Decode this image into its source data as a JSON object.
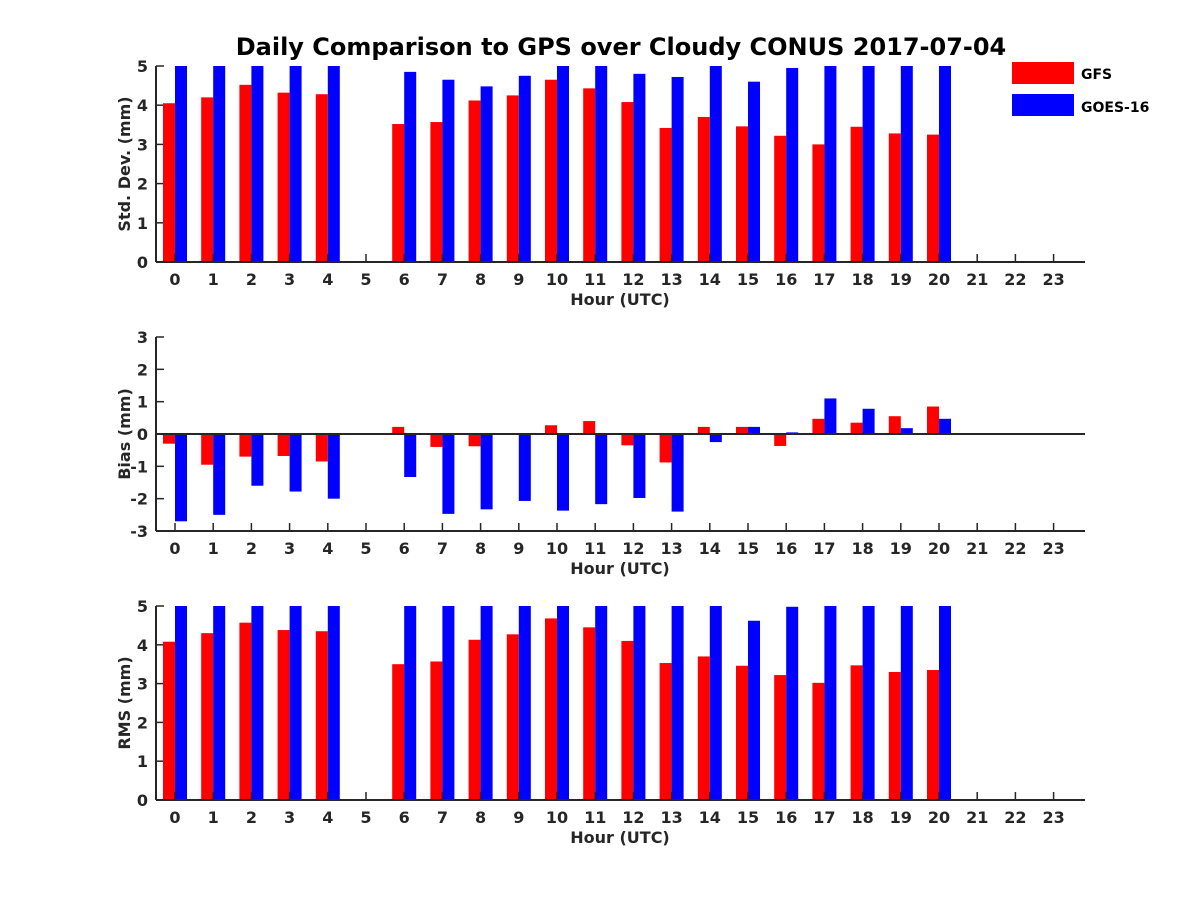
{
  "chart_data": {
    "title": "Daily Comparison to GPS over Cloudy CONUS 2017-07-04",
    "legend": {
      "position": "top-right",
      "entries": [
        {
          "name": "GFS",
          "color": "#ff0000"
        },
        {
          "name": "GOES-16",
          "color": "#0000ff"
        }
      ]
    },
    "panels": [
      {
        "type": "bar",
        "ylabel": "Std. Dev. (mm)",
        "xlabel": "Hour (UTC)",
        "ylim": [
          0,
          5
        ],
        "yticks": [
          "0",
          "1",
          "2",
          "3",
          "4",
          "5"
        ],
        "categories": [
          "0",
          "1",
          "2",
          "3",
          "4",
          "5",
          "6",
          "7",
          "8",
          "9",
          "10",
          "11",
          "12",
          "13",
          "14",
          "15",
          "16",
          "17",
          "18",
          "19",
          "20",
          "21",
          "22",
          "23"
        ],
        "series": [
          {
            "name": "GFS",
            "color": "#ff0000",
            "values": [
              4.05,
              4.2,
              4.52,
              4.32,
              4.28,
              null,
              3.52,
              3.57,
              4.12,
              4.25,
              4.65,
              4.43,
              4.08,
              3.42,
              3.7,
              3.46,
              3.22,
              3.0,
              3.45,
              3.28,
              3.25,
              null,
              null,
              null
            ]
          },
          {
            "name": "GOES-16",
            "color": "#0000ff",
            "values": [
              5,
              5,
              5,
              5,
              5,
              null,
              4.85,
              4.65,
              4.48,
              4.75,
              5,
              5,
              4.8,
              4.72,
              5,
              4.6,
              4.95,
              5,
              5,
              5,
              5,
              null,
              null,
              null
            ]
          }
        ]
      },
      {
        "type": "bar",
        "ylabel": "Bias (mm)",
        "xlabel": "Hour (UTC)",
        "ylim": [
          -3,
          3
        ],
        "yticks": [
          "-3",
          "-2",
          "-1",
          "0",
          "1",
          "2",
          "3"
        ],
        "categories": [
          "0",
          "1",
          "2",
          "3",
          "4",
          "5",
          "6",
          "7",
          "8",
          "9",
          "10",
          "11",
          "12",
          "13",
          "14",
          "15",
          "16",
          "17",
          "18",
          "19",
          "20",
          "21",
          "22",
          "23"
        ],
        "series": [
          {
            "name": "GFS",
            "color": "#ff0000",
            "values": [
              -0.3,
              -0.95,
              -0.7,
              -0.68,
              -0.85,
              null,
              0.22,
              -0.4,
              -0.38,
              0.03,
              0.27,
              0.4,
              -0.35,
              -0.88,
              0.22,
              0.22,
              -0.37,
              0.47,
              0.35,
              0.55,
              0.85,
              null,
              null,
              null
            ]
          },
          {
            "name": "GOES-16",
            "color": "#0000ff",
            "values": [
              -2.7,
              -2.5,
              -1.6,
              -1.78,
              -2.0,
              null,
              -1.33,
              -2.47,
              -2.33,
              -2.07,
              -2.37,
              -2.17,
              -1.98,
              -2.4,
              -0.25,
              0.22,
              0.05,
              1.1,
              0.78,
              0.18,
              0.47,
              null,
              null,
              null
            ]
          }
        ]
      },
      {
        "type": "bar",
        "ylabel": "RMS (mm)",
        "xlabel": "Hour (UTC)",
        "ylim": [
          0,
          5
        ],
        "yticks": [
          "0",
          "1",
          "2",
          "3",
          "4",
          "5"
        ],
        "categories": [
          "0",
          "1",
          "2",
          "3",
          "4",
          "5",
          "6",
          "7",
          "8",
          "9",
          "10",
          "11",
          "12",
          "13",
          "14",
          "15",
          "16",
          "17",
          "18",
          "19",
          "20",
          "21",
          "22",
          "23"
        ],
        "series": [
          {
            "name": "GFS",
            "color": "#ff0000",
            "values": [
              4.08,
              4.3,
              4.57,
              4.38,
              4.35,
              null,
              3.5,
              3.57,
              4.13,
              4.27,
              4.68,
              4.45,
              4.1,
              3.53,
              3.7,
              3.46,
              3.22,
              3.02,
              3.47,
              3.3,
              3.35,
              null,
              null,
              null
            ]
          },
          {
            "name": "GOES-16",
            "color": "#0000ff",
            "values": [
              5,
              5,
              5,
              5,
              5,
              null,
              5,
              5,
              5,
              5,
              5,
              5,
              5,
              5,
              5,
              4.62,
              4.98,
              5,
              5,
              5,
              5,
              null,
              null,
              null
            ]
          }
        ]
      }
    ]
  }
}
